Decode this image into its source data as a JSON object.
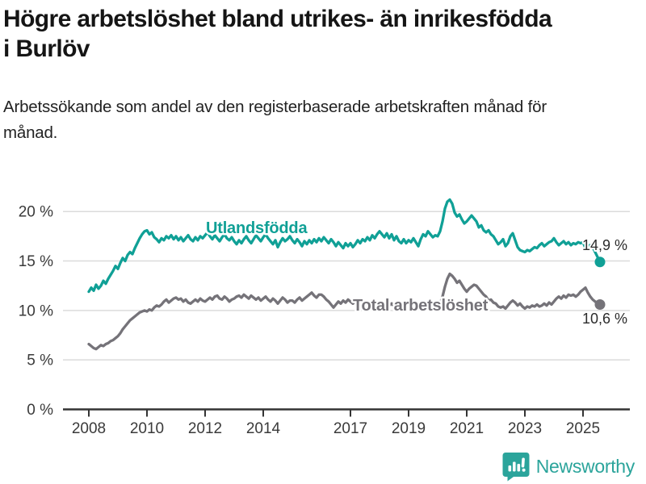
{
  "title": "Högre arbetslöshet bland utrikes- än inrikesfödda i Burlöv",
  "subtitle": "Arbetssökande som andel av den registerbaserade arbetskraften månad för månad.",
  "branding": {
    "logo_text": "Newsworthy",
    "logo_icon": "bar-chart-speech-bubble-icon",
    "logo_color": "#2ba49b"
  },
  "chart_data": {
    "type": "line",
    "title": "Högre arbetslöshet bland utrikes- än inrikesfödda i Burlöv",
    "xlabel": "",
    "ylabel": "",
    "unit": "%",
    "grid": "horizontal",
    "x_start_year": 2008,
    "points_per_year": 12,
    "x_ticks": [
      2008,
      2010,
      2012,
      2014,
      2017,
      2019,
      2021,
      2023,
      2025
    ],
    "y_ticks": [
      {
        "label": "20 %",
        "value": 20
      },
      {
        "label": "15 %",
        "value": 15
      },
      {
        "label": "10 %",
        "value": 10
      },
      {
        "label": "5 %",
        "value": 5
      },
      {
        "label": "0 %",
        "value": 0
      }
    ],
    "ylim": [
      0,
      21.5
    ],
    "series": [
      {
        "name": "Utlandsfödda",
        "color": "#10a096",
        "end_label": "14,9 %",
        "end_value": 14.9,
        "values": [
          11.9,
          12.3,
          12.0,
          12.6,
          12.2,
          12.5,
          13.0,
          12.7,
          13.2,
          13.6,
          14.0,
          14.5,
          14.2,
          14.8,
          15.3,
          15.0,
          15.6,
          15.9,
          15.7,
          16.3,
          16.8,
          17.3,
          17.7,
          18.0,
          18.1,
          17.7,
          17.9,
          17.4,
          17.2,
          16.9,
          17.3,
          17.1,
          17.5,
          17.3,
          17.6,
          17.2,
          17.5,
          17.1,
          17.4,
          17.0,
          17.3,
          17.6,
          17.2,
          17.0,
          17.4,
          17.1,
          17.5,
          17.3,
          17.6,
          17.9,
          17.5,
          17.2,
          17.6,
          17.3,
          17.0,
          17.4,
          17.7,
          17.3,
          17.1,
          17.4,
          17.0,
          16.7,
          17.1,
          16.8,
          17.2,
          17.5,
          17.1,
          16.8,
          17.2,
          17.6,
          17.3,
          17.0,
          17.4,
          17.7,
          17.3,
          17.0,
          16.7,
          17.1,
          16.4,
          16.9,
          17.3,
          17.0,
          17.2,
          17.5,
          17.1,
          16.8,
          17.2,
          16.9,
          16.5,
          17.0,
          16.7,
          17.1,
          16.8,
          17.2,
          16.9,
          17.3,
          17.0,
          17.4,
          17.1,
          16.8,
          17.2,
          16.9,
          16.5,
          16.9,
          16.6,
          16.3,
          16.8,
          16.5,
          16.8,
          16.4,
          16.7,
          17.1,
          16.8,
          17.2,
          17.0,
          17.4,
          17.1,
          17.6,
          17.3,
          17.7,
          18.0,
          17.7,
          17.4,
          17.8,
          17.3,
          17.7,
          17.1,
          17.5,
          17.0,
          16.8,
          17.2,
          16.8,
          17.1,
          16.9,
          17.3,
          16.9,
          16.5,
          17.2,
          17.7,
          17.5,
          18.0,
          17.7,
          17.4,
          17.6,
          17.5,
          18.0,
          19.0,
          20.3,
          21.0,
          21.2,
          20.8,
          19.9,
          19.5,
          19.7,
          19.2,
          18.8,
          19.0,
          19.3,
          19.6,
          19.3,
          19.0,
          18.4,
          18.6,
          18.1,
          17.9,
          18.1,
          17.7,
          17.5,
          17.1,
          16.7,
          16.9,
          17.2,
          16.5,
          16.8,
          17.5,
          17.8,
          17.1,
          16.4,
          16.1,
          16.0,
          15.9,
          16.1,
          16.0,
          16.2,
          16.4,
          16.3,
          16.6,
          16.8,
          16.5,
          16.7,
          16.9,
          17.0,
          17.3,
          16.9,
          16.6,
          16.8,
          17.0,
          16.7,
          16.9,
          16.6,
          16.8,
          16.7,
          16.9,
          16.8,
          16.9,
          16.3,
          16.5,
          16.6,
          16.4,
          15.9,
          15.4,
          14.9
        ]
      },
      {
        "name": "Total arbetslöshet",
        "color": "#757379",
        "end_label": "10,6 %",
        "end_value": 10.6,
        "values": [
          6.6,
          6.4,
          6.2,
          6.1,
          6.3,
          6.5,
          6.4,
          6.6,
          6.7,
          6.9,
          7.0,
          7.2,
          7.4,
          7.7,
          8.1,
          8.4,
          8.7,
          9.0,
          9.2,
          9.4,
          9.6,
          9.8,
          9.9,
          10.0,
          9.9,
          10.1,
          10.0,
          10.3,
          10.5,
          10.4,
          10.6,
          10.9,
          11.1,
          10.8,
          11.0,
          11.2,
          11.3,
          11.1,
          11.2,
          10.9,
          11.1,
          10.8,
          10.7,
          10.9,
          11.1,
          10.9,
          11.2,
          11.0,
          10.9,
          11.1,
          11.3,
          11.1,
          11.4,
          11.5,
          11.2,
          11.1,
          11.4,
          11.2,
          10.9,
          11.1,
          11.2,
          11.4,
          11.5,
          11.3,
          11.6,
          11.4,
          11.2,
          11.5,
          11.3,
          11.1,
          11.3,
          11.0,
          11.2,
          11.4,
          11.1,
          10.9,
          11.2,
          11.0,
          10.7,
          11.0,
          11.3,
          11.1,
          10.8,
          11.0,
          11.0,
          10.8,
          11.1,
          11.3,
          11.0,
          11.2,
          11.4,
          11.6,
          11.8,
          11.5,
          11.3,
          11.6,
          11.6,
          11.4,
          11.1,
          10.9,
          10.6,
          10.3,
          10.6,
          10.9,
          10.7,
          11.0,
          10.8,
          11.1,
          10.9,
          10.7,
          10.9,
          10.6,
          10.8,
          10.5,
          10.3,
          10.6,
          10.4,
          10.7,
          10.5,
          10.8,
          10.6,
          10.4,
          10.6,
          10.3,
          10.5,
          10.7,
          10.4,
          10.2,
          10.5,
          10.3,
          10.6,
          10.4,
          10.2,
          10.4,
          10.6,
          10.4,
          10.7,
          10.5,
          10.3,
          10.6,
          10.8,
          10.5,
          10.7,
          10.4,
          10.5,
          10.7,
          11.4,
          12.4,
          13.2,
          13.7,
          13.5,
          13.2,
          12.8,
          13.0,
          12.6,
          12.2,
          11.9,
          12.2,
          12.4,
          12.6,
          12.5,
          12.2,
          11.9,
          11.6,
          11.4,
          11.0,
          11.1,
          10.8,
          10.7,
          10.4,
          10.3,
          10.4,
          10.2,
          10.5,
          10.8,
          11.0,
          10.8,
          10.5,
          10.7,
          10.4,
          10.2,
          10.4,
          10.3,
          10.5,
          10.4,
          10.6,
          10.4,
          10.5,
          10.7,
          10.5,
          10.8,
          10.6,
          10.9,
          11.2,
          11.4,
          11.2,
          11.5,
          11.3,
          11.6,
          11.5,
          11.6,
          11.4,
          11.6,
          11.9,
          12.1,
          12.3,
          11.8,
          11.4,
          11.1,
          10.9,
          10.7,
          10.6
        ]
      }
    ]
  }
}
